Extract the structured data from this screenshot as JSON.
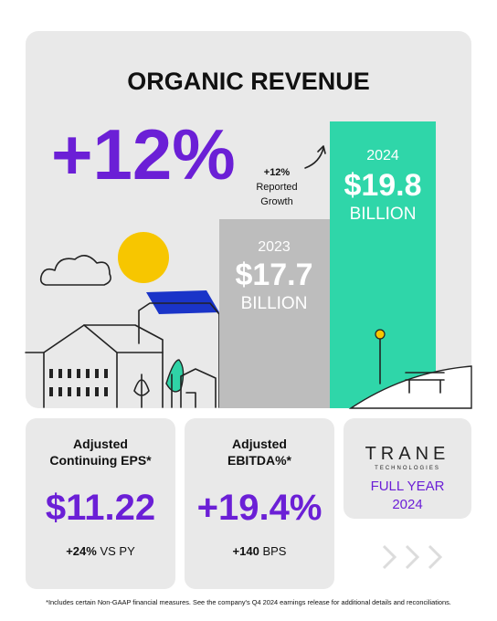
{
  "header": {
    "title": "ORGANIC REVENUE",
    "headline": "+12%"
  },
  "bars": [
    {
      "year": "2023",
      "amount": "$17.7",
      "unit": "BILLION"
    },
    {
      "year": "2024",
      "amount": "$19.8",
      "unit": "BILLION"
    }
  ],
  "annotation": [
    "+12%",
    "Reported",
    "Growth"
  ],
  "cards": [
    {
      "title": [
        "Adjusted",
        "Continuing EPS*"
      ],
      "value": "$11.22",
      "change": "+24%",
      "change_note": "VS PY"
    },
    {
      "title": [
        "Adjusted",
        "EBITDA%*"
      ],
      "value": "+19.4%",
      "change": "+140",
      "change_note": "BPS"
    }
  ],
  "brand": {
    "logo": "TRANE",
    "sub": "TECHNOLOGIES",
    "period": [
      "FULL YEAR",
      "2024"
    ]
  },
  "footnote": "*Includes certain Non-GAAP financial measures. See the company's Q4 2024 earnings release for additional details and reconciliations."
}
